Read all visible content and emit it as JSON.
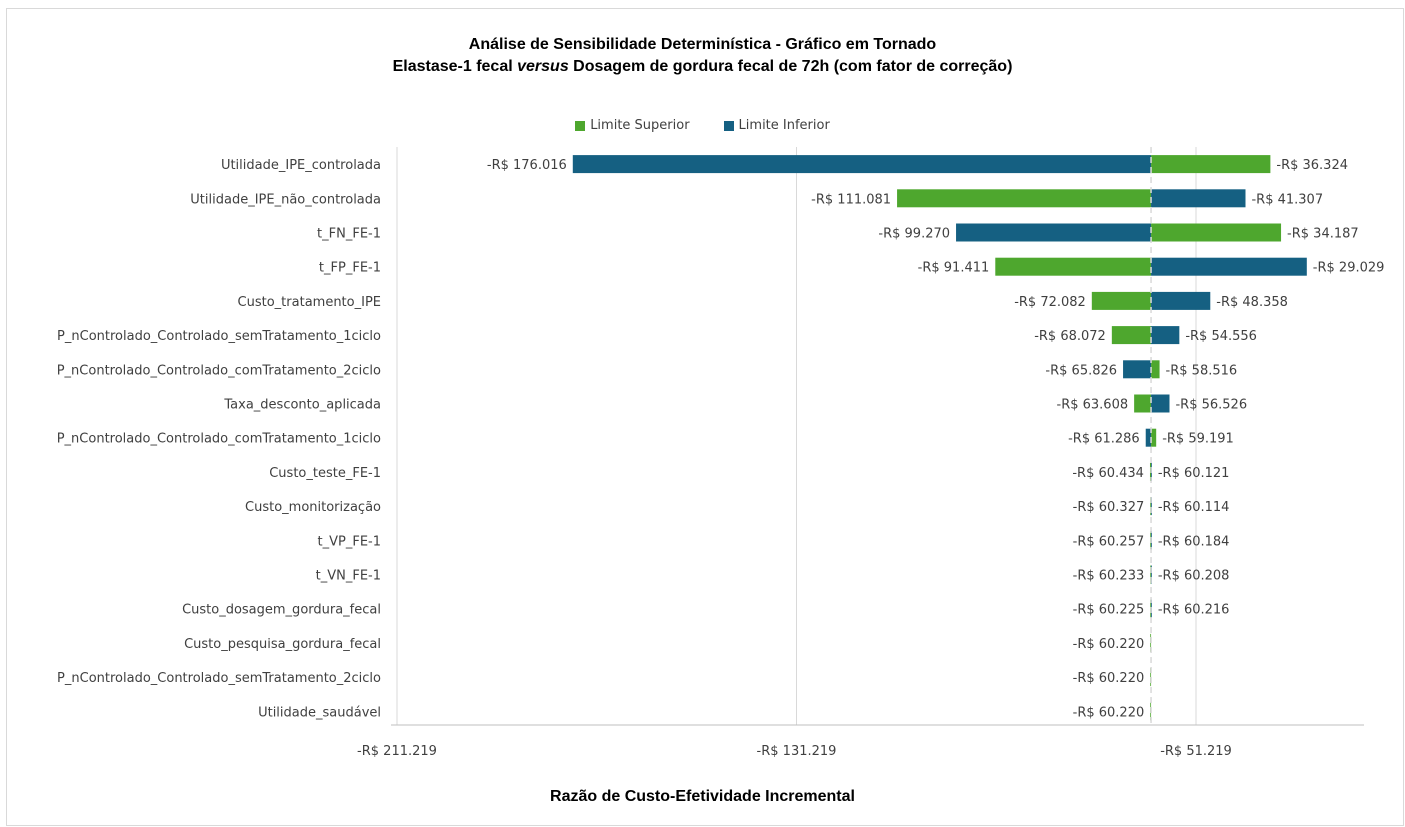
{
  "chart_data": {
    "type": "bar",
    "orientation": "horizontal-tornado",
    "title": "Análise de Sensibilidade Determinística - Gráfico em Tornado",
    "subtitle_parts": [
      "Elastase-1 fecal ",
      "versus",
      " Dosagem de gordura fecal de 72h (com fator de correção)"
    ],
    "xlabel": "Razão de Custo-Efetividade Incremental",
    "ylabel": "",
    "baseline": -60.22,
    "xlim": [
      -211.219,
      0
    ],
    "xticks": [
      -211.219,
      -131.219,
      -51.219
    ],
    "xtick_labels": [
      "-R$ 211.219",
      "-R$ 131.219",
      "-R$ 51.219"
    ],
    "grid": true,
    "legend": {
      "position": "top",
      "items": [
        {
          "name": "Limite Superior",
          "color": "#4ea72e"
        },
        {
          "name": "Limite Inferior",
          "color": "#156082"
        }
      ]
    },
    "colors": {
      "superior": "#4ea72e",
      "inferior": "#156082"
    },
    "rows": [
      {
        "category": "Utilidade_IPE_controlada",
        "left_value": -176.016,
        "left_label": "-R$ 176.016",
        "left_series": "Limite Inferior",
        "right_value": -36.324,
        "right_label": "-R$ 36.324",
        "right_series": "Limite Superior"
      },
      {
        "category": "Utilidade_IPE_não_controlada",
        "left_value": -111.081,
        "left_label": "-R$ 111.081",
        "left_series": "Limite Superior",
        "right_value": -41.307,
        "right_label": "-R$ 41.307",
        "right_series": "Limite Inferior"
      },
      {
        "category": "t_FN_FE-1",
        "left_value": -99.27,
        "left_label": "-R$ 99.270",
        "left_series": "Limite Inferior",
        "right_value": -34.187,
        "right_label": "-R$ 34.187",
        "right_series": "Limite Superior"
      },
      {
        "category": "t_FP_FE-1",
        "left_value": -91.411,
        "left_label": "-R$ 91.411",
        "left_series": "Limite Superior",
        "right_value": -29.029,
        "right_label": "-R$ 29.029",
        "right_series": "Limite Inferior"
      },
      {
        "category": "Custo_tratamento_IPE",
        "left_value": -72.082,
        "left_label": "-R$ 72.082",
        "left_series": "Limite Superior",
        "right_value": -48.358,
        "right_label": "-R$ 48.358",
        "right_series": "Limite Inferior"
      },
      {
        "category": "P_nControlado_Controlado_semTratamento_1ciclo",
        "left_value": -68.072,
        "left_label": "-R$ 68.072",
        "left_series": "Limite Superior",
        "right_value": -54.556,
        "right_label": "-R$ 54.556",
        "right_series": "Limite Inferior"
      },
      {
        "category": "P_nControlado_Controlado_comTratamento_2ciclo",
        "left_value": -65.826,
        "left_label": "-R$ 65.826",
        "left_series": "Limite Inferior",
        "right_value": -58.516,
        "right_label": "-R$ 58.516",
        "right_series": "Limite Superior"
      },
      {
        "category": "Taxa_desconto_aplicada",
        "left_value": -63.608,
        "left_label": "-R$ 63.608",
        "left_series": "Limite Superior",
        "right_value": -56.526,
        "right_label": "-R$ 56.526",
        "right_series": "Limite Inferior"
      },
      {
        "category": "P_nControlado_Controlado_comTratamento_1ciclo",
        "left_value": -61.286,
        "left_label": "-R$ 61.286",
        "left_series": "Limite Inferior",
        "right_value": -59.191,
        "right_label": "-R$ 59.191",
        "right_series": "Limite Superior"
      },
      {
        "category": "Custo_teste_FE-1",
        "left_value": -60.434,
        "left_label": "-R$ 60.434",
        "left_series": "Limite Superior",
        "right_value": -60.121,
        "right_label": "-R$ 60.121",
        "right_series": "Limite Inferior"
      },
      {
        "category": "Custo_monitorização",
        "left_value": -60.327,
        "left_label": "-R$ 60.327",
        "left_series": "Limite Superior",
        "right_value": -60.114,
        "right_label": "-R$ 60.114",
        "right_series": "Limite Inferior"
      },
      {
        "category": "t_VP_FE-1",
        "left_value": -60.257,
        "left_label": "-R$ 60.257",
        "left_series": "Limite Superior",
        "right_value": -60.184,
        "right_label": "-R$ 60.184",
        "right_series": "Limite Inferior"
      },
      {
        "category": "t_VN_FE-1",
        "left_value": -60.233,
        "left_label": "-R$ 60.233",
        "left_series": "Limite Superior",
        "right_value": -60.208,
        "right_label": "-R$ 60.208",
        "right_series": "Limite Inferior"
      },
      {
        "category": "Custo_dosagem_gordura_fecal",
        "left_value": -60.225,
        "left_label": "-R$ 60.225",
        "left_series": "Limite Superior",
        "right_value": -60.216,
        "right_label": "-R$ 60.216",
        "right_series": "Limite Inferior"
      },
      {
        "category": "Custo_pesquisa_gordura_fecal",
        "left_value": -60.22,
        "left_label": "-R$ 60.220",
        "left_series": "Limite Superior",
        "right_value": null,
        "right_label": "",
        "right_series": "Limite Inferior"
      },
      {
        "category": "P_nControlado_Controlado_semTratamento_2ciclo",
        "left_value": -60.22,
        "left_label": "-R$ 60.220",
        "left_series": "Limite Superior",
        "right_value": null,
        "right_label": "",
        "right_series": "Limite Inferior"
      },
      {
        "category": "Utilidade_saudável",
        "left_value": -60.22,
        "left_label": "-R$ 60.220",
        "left_series": "Limite Superior",
        "right_value": null,
        "right_label": "",
        "right_series": "Limite Inferior"
      }
    ]
  }
}
